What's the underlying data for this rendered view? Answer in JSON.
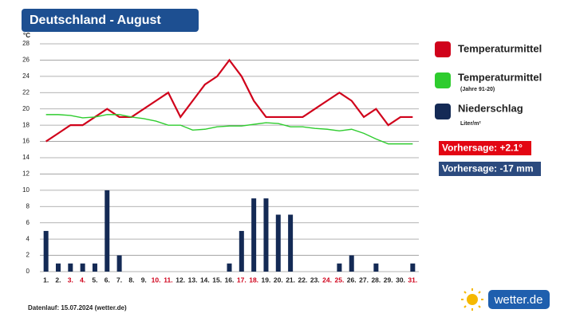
{
  "chart_data": {
    "type": "combo",
    "title": "Deutschland - August",
    "y_label": "°C",
    "categories": [
      "1.",
      "2.",
      "3.",
      "4.",
      "5.",
      "6.",
      "7.",
      "8.",
      "9.",
      "10.",
      "11.",
      "12.",
      "13.",
      "14.",
      "15.",
      "16.",
      "17.",
      "18.",
      "19.",
      "20.",
      "21.",
      "22.",
      "23.",
      "24.",
      "25.",
      "26.",
      "27.",
      "28.",
      "29.",
      "30.",
      "31."
    ],
    "category_colors": [
      "#222",
      "#222",
      "#d0021b",
      "#d0021b",
      "#222",
      "#222",
      "#222",
      "#222",
      "#222",
      "#d0021b",
      "#d0021b",
      "#222",
      "#222",
      "#222",
      "#222",
      "#222",
      "#d0021b",
      "#d0021b",
      "#222",
      "#222",
      "#222",
      "#222",
      "#222",
      "#d0021b",
      "#d0021b",
      "#222",
      "#222",
      "#222",
      "#222",
      "#222",
      "#d0021b"
    ],
    "ylim": [
      0,
      28
    ],
    "yticks": [
      0,
      2,
      4,
      6,
      8,
      10,
      12,
      14,
      16,
      18,
      20,
      22,
      24,
      26,
      28
    ],
    "grid": true,
    "series": [
      {
        "name": "Temperaturmittel",
        "type": "line",
        "color": "#d0021b",
        "values": [
          16,
          17,
          18,
          18,
          19,
          20,
          19,
          19,
          20,
          21,
          22,
          19,
          21,
          23,
          24,
          26,
          24,
          21,
          19,
          19,
          19,
          19,
          20,
          21,
          22,
          21,
          19,
          20,
          18,
          19,
          19
        ]
      },
      {
        "name": "Temperaturmittel",
        "note": "(Jahre 91-20)",
        "type": "line",
        "color": "#2ecc2e",
        "values": [
          19.3,
          19.3,
          19.2,
          18.9,
          19.0,
          19.3,
          19.3,
          19.0,
          18.8,
          18.5,
          18.0,
          18.0,
          17.4,
          17.5,
          17.8,
          17.9,
          17.9,
          18.1,
          18.3,
          18.2,
          17.8,
          17.8,
          17.6,
          17.5,
          17.3,
          17.5,
          17.0,
          16.3,
          15.7,
          15.7,
          15.7
        ]
      },
      {
        "name": "Niederschlag",
        "note": "Liter/m²",
        "type": "bar",
        "color": "#142a55",
        "values": [
          5,
          1,
          1,
          1,
          1,
          10,
          2,
          0,
          0,
          0,
          0,
          0,
          0,
          0,
          0,
          1,
          5,
          9,
          9,
          7,
          7,
          0,
          0,
          0,
          1,
          2,
          0,
          1,
          0,
          0,
          1
        ]
      }
    ],
    "forecasts": [
      {
        "text": "Vorhersage: +2.1°",
        "color": "#e30613"
      },
      {
        "text": "Vorhersage: -17 mm",
        "color": "#2b4a7e"
      }
    ],
    "footnote": "Datenlauf: 15.07.2024 (wetter.de)",
    "logo": "wetter.de"
  }
}
